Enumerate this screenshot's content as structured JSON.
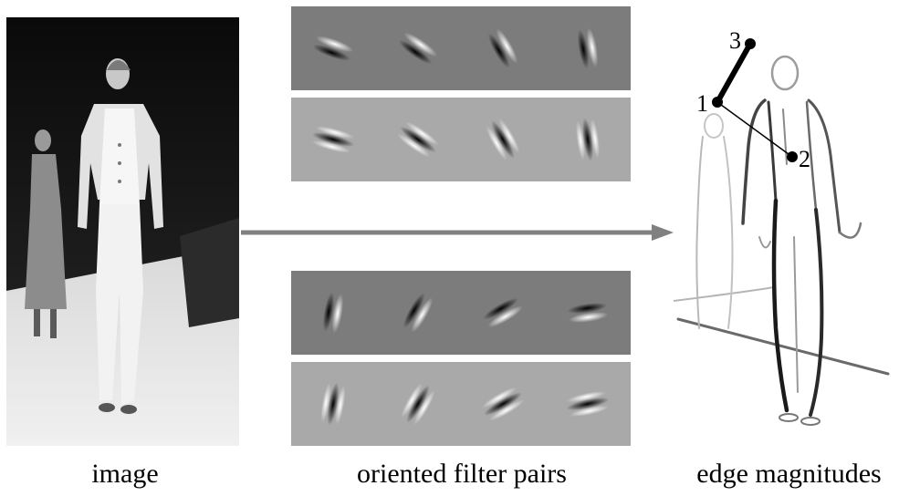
{
  "captions": {
    "image": "image",
    "filters": "oriented filter pairs",
    "edges": "edge magnitudes"
  },
  "edge_points": {
    "p1": "1",
    "p2": "2",
    "p3": "3"
  },
  "colors": {
    "arrow": "#808080",
    "filter_bg_dark": "#7c7c7c",
    "filter_bg_light": "#a9a9a9",
    "photo_bg": "#161616"
  }
}
